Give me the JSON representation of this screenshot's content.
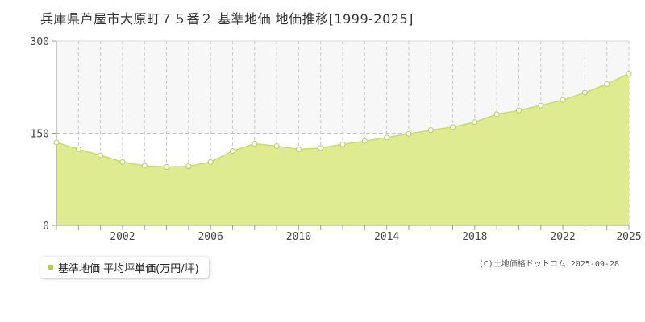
{
  "title": "兵庫県芦屋市大原町７５番２ 基準地価 地価推移[1999-2025]",
  "legend": {
    "label": "基準地価 平均坪単価(万円/坪)"
  },
  "copyright": "(C)土地価格ドットコム 2025-09-28",
  "colors": {
    "area_fill": "#dfeb91",
    "line": "#c6df5e",
    "marker_fill": "#ffffff",
    "marker_stroke": "#b4d34c",
    "legend_marker": "#b4d34c",
    "plot_band_upper": "#f8f7f7",
    "grid_dashed": "#c8c8c8"
  },
  "chart_data": {
    "type": "area",
    "title": "兵庫県芦屋市大原町７５番２ 基準地価 地価推移[1999-2025]",
    "xlabel": "",
    "ylabel": "",
    "x": [
      1999,
      2000,
      2001,
      2002,
      2003,
      2004,
      2005,
      2006,
      2007,
      2008,
      2009,
      2010,
      2011,
      2012,
      2013,
      2014,
      2015,
      2016,
      2017,
      2018,
      2019,
      2020,
      2021,
      2022,
      2023,
      2024,
      2025
    ],
    "series": [
      {
        "name": "基準地価 平均坪単価(万円/坪)",
        "values": [
          135,
          124,
          114,
          103,
          97,
          95,
          96,
          103,
          121,
          133,
          129,
          124,
          126,
          132,
          137,
          143,
          149,
          155,
          160,
          168,
          181,
          187,
          195,
          204,
          216,
          230,
          247
        ]
      }
    ],
    "x_ticks": [
      "2002",
      "2006",
      "2010",
      "2014",
      "2018",
      "2022",
      "2025"
    ],
    "x_tick_values": [
      2002,
      2006,
      2010,
      2014,
      2018,
      2022,
      2025
    ],
    "y_ticks": [
      "0",
      "150",
      "300"
    ],
    "y_tick_values": [
      0,
      150,
      300
    ],
    "xlim": [
      1999,
      2025
    ],
    "ylim": [
      0,
      300
    ],
    "grid": true,
    "legend_position": "bottom-left"
  }
}
